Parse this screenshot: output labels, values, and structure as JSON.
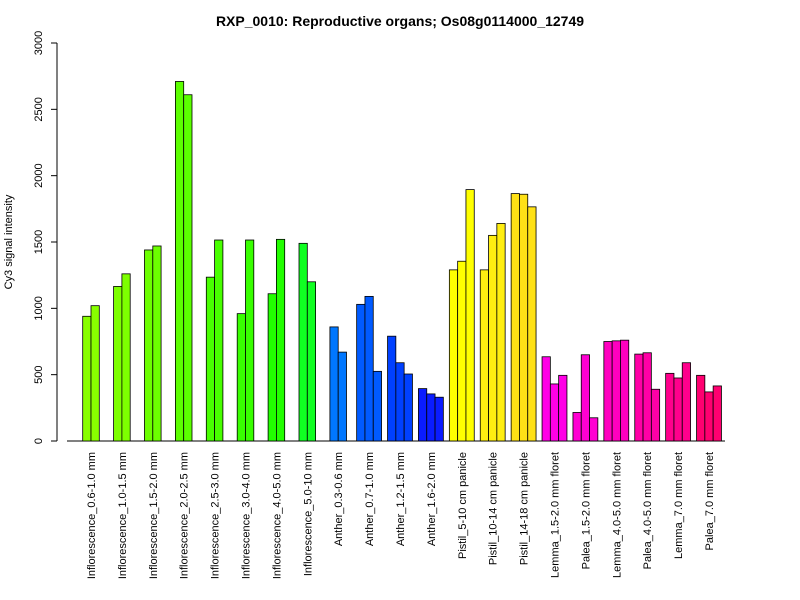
{
  "chart_data": {
    "type": "bar",
    "title": "RXP_0010: Reproductive organs; Os08g0114000_12749",
    "xlabel": "",
    "ylabel": "Cy3 signal intensity",
    "ylim": [
      0,
      3000
    ],
    "yticks": [
      0,
      500,
      1000,
      1500,
      2000,
      2500,
      3000
    ],
    "grid": false,
    "legend": "none",
    "groups": [
      {
        "label": "Inflorescence_0.6-1.0 mm",
        "color": "#88ff00",
        "values": [
          940,
          1020
        ]
      },
      {
        "label": "Inflorescence_1.0-1.5 mm",
        "color": "#7dff00",
        "values": [
          1165,
          1260
        ]
      },
      {
        "label": "Inflorescence_1.5-2.0 mm",
        "color": "#6cff00",
        "values": [
          1440,
          1470
        ]
      },
      {
        "label": "Inflorescence_2.0-2.5 mm",
        "color": "#5bff00",
        "values": [
          2710,
          2610
        ]
      },
      {
        "label": "Inflorescence_2.5-3.0 mm",
        "color": "#48ff00",
        "values": [
          1235,
          1515
        ]
      },
      {
        "label": "Inflorescence_3.0-4.0 mm",
        "color": "#38ff00",
        "values": [
          960,
          1515
        ]
      },
      {
        "label": "Inflorescence_4.0-5.0 mm",
        "color": "#22ff00",
        "values": [
          1110,
          1520
        ]
      },
      {
        "label": "Inflorescence_5.0-10 mm",
        "color": "#10ff22",
        "values": [
          1490,
          1200
        ]
      },
      {
        "label": "Anther_0.3-0.6 mm",
        "color": "#0077ff",
        "values": [
          860,
          670
        ]
      },
      {
        "label": "Anther_0.7-1.0 mm",
        "color": "#005aff",
        "values": [
          1030,
          1090,
          525
        ]
      },
      {
        "label": "Anther_1.2-1.5 mm",
        "color": "#0040ff",
        "values": [
          790,
          590,
          505
        ]
      },
      {
        "label": "Anther_1.6-2.0 mm",
        "color": "#0a1cff",
        "values": [
          395,
          355,
          330
        ]
      },
      {
        "label": "Pistil_5-10 cm panicle",
        "color": "#ffff00",
        "values": [
          1290,
          1355,
          1895
        ]
      },
      {
        "label": "Pistil_10-14 cm panicle",
        "color": "#ffee11",
        "values": [
          1290,
          1550,
          1640
        ]
      },
      {
        "label": "Pistil_14-18 cm panicle",
        "color": "#ffe116",
        "values": [
          1865,
          1860,
          1765
        ]
      },
      {
        "label": "Lemma_1.5-2.0 mm floret",
        "color": "#ff00e6",
        "values": [
          635,
          430,
          495
        ]
      },
      {
        "label": "Palea_1.5-2.0 mm floret",
        "color": "#ff00d2",
        "values": [
          215,
          650,
          175
        ]
      },
      {
        "label": "Lemma_4.0-5.0 mm floret",
        "color": "#ff00bf",
        "values": [
          750,
          755,
          760
        ]
      },
      {
        "label": "Palea_4.0-5.0 mm floret",
        "color": "#ff00a6",
        "values": [
          655,
          665,
          390
        ]
      },
      {
        "label": "Lemma_7.0 mm floret",
        "color": "#ff008c",
        "values": [
          510,
          475,
          590
        ]
      },
      {
        "label": "Palea_7.0 mm floret",
        "color": "#ff0070",
        "values": [
          495,
          370,
          415
        ]
      }
    ]
  }
}
